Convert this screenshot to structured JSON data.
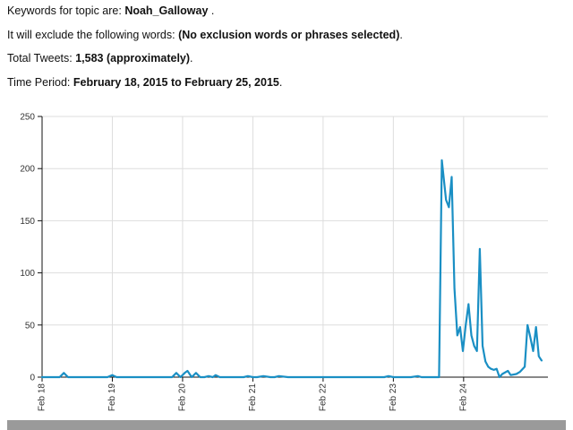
{
  "summary": {
    "keywords_prefix": "Keywords for topic are: ",
    "keywords_value": "Noah_Galloway",
    "keywords_suffix": " .",
    "exclude_prefix": "It will exclude the following words: ",
    "exclude_value": "(No exclusion words or phrases selected)",
    "exclude_suffix": ".",
    "tweets_prefix": "Total Tweets: ",
    "tweets_value": "1,583 (approximately)",
    "tweets_suffix": ".",
    "period_prefix": "Time Period: ",
    "period_value": "February 18, 2015 to February 25, 2015",
    "period_suffix": "."
  },
  "colors": {
    "line": "#1a8fc4",
    "grid": "#dddddd",
    "axis": "#111111",
    "scrollbar": "#9a9a9a"
  },
  "chart_data": {
    "type": "line",
    "title": "",
    "xlabel": "",
    "ylabel": "",
    "ylim": [
      0,
      250
    ],
    "xlim": [
      0,
      7.2
    ],
    "yticks": [
      0,
      50,
      100,
      150,
      200,
      250
    ],
    "xtick_labels": [
      "Feb 18",
      "Feb 19",
      "Feb 20",
      "Feb 21",
      "Feb 22",
      "Feb 23",
      "Feb 24"
    ],
    "grid": true,
    "series": [
      {
        "x": [
          0,
          0.25,
          0.31,
          0.37,
          0.5,
          0.75,
          0.93,
          1.0,
          1.06,
          1.25,
          1.5,
          1.75,
          1.85,
          1.91,
          1.97,
          2.03,
          2.07,
          2.13,
          2.19,
          2.25,
          2.31,
          2.37,
          2.43,
          2.47,
          2.53,
          2.6,
          2.75,
          2.87,
          2.93,
          3.0,
          3.06,
          3.15,
          3.25,
          3.31,
          3.37,
          3.5,
          3.75,
          4.0,
          4.25,
          4.5,
          4.75,
          4.87,
          4.93,
          5.0,
          5.06,
          5.25,
          5.35,
          5.4,
          5.5,
          5.65,
          5.69,
          5.75,
          5.79,
          5.83,
          5.87,
          5.91,
          5.95,
          5.99,
          6.03,
          6.07,
          6.11,
          6.15,
          6.19,
          6.23,
          6.27,
          6.31,
          6.35,
          6.39,
          6.43,
          6.47,
          6.51,
          6.55,
          6.63,
          6.67,
          6.75,
          6.8,
          6.87,
          6.91,
          6.95,
          6.99,
          7.03,
          7.07,
          7.11
        ],
        "values": [
          0,
          0,
          4,
          0,
          0,
          0,
          0,
          2,
          0,
          0,
          0,
          0,
          0,
          4,
          0,
          4,
          6,
          0,
          4,
          0,
          0,
          1,
          0,
          2,
          0,
          0,
          0,
          0,
          1,
          0,
          0,
          1,
          0,
          0,
          1,
          0,
          0,
          0,
          0,
          0,
          0,
          0,
          1,
          0,
          0,
          0,
          1,
          0,
          0,
          0,
          208,
          170,
          163,
          192,
          85,
          40,
          48,
          25,
          50,
          70,
          40,
          30,
          25,
          123,
          30,
          15,
          10,
          8,
          7,
          8,
          0,
          3,
          6,
          2,
          3,
          5,
          10,
          50,
          38,
          25,
          48,
          20,
          16
        ]
      }
    ]
  }
}
